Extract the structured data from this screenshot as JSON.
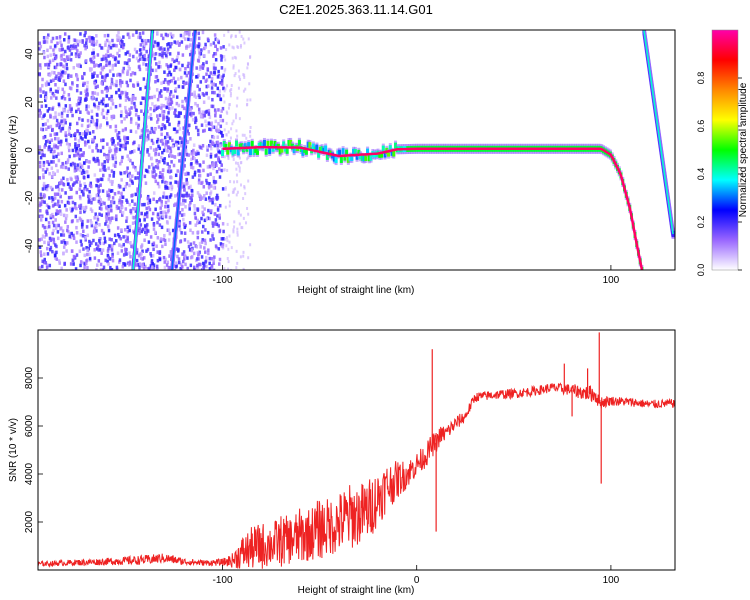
{
  "title": "C2E1.2025.363.11.14.G01",
  "chart_data": [
    {
      "type": "heatmap",
      "name": "spectrogram",
      "xlabel": "Height of straight line (km)",
      "ylabel": "Frequency (Hz)",
      "xlim": [
        -195,
        133
      ],
      "ylim": [
        -50,
        50
      ],
      "xticks": [
        -100,
        100
      ],
      "xtick_labels": [
        "-100",
        "100"
      ],
      "yticks": [
        -40,
        -20,
        0,
        20,
        40
      ],
      "ytick_labels": [
        "-40",
        "-20",
        "0",
        "20",
        "40"
      ],
      "colorbar": {
        "label": "Normalized spectral amplitude",
        "range": [
          0,
          1
        ],
        "ticks": [
          0,
          0.2,
          0.4,
          0.6,
          0.8
        ],
        "tick_labels": [
          "0.0",
          "0.2",
          "0.4",
          "0.6",
          "0.8"
        ],
        "colormap": [
          "#ffffff",
          "#9966ff",
          "#0000ff",
          "#00ffff",
          "#00ff00",
          "#ffff00",
          "#ff8800",
          "#ff0000",
          "#ff00aa"
        ]
      },
      "features": [
        {
          "label": "main tone",
          "x": [
            -100,
            -80,
            -60,
            -40,
            -20,
            -10,
            0,
            20,
            40,
            60,
            80,
            95,
            100,
            105,
            110,
            113,
            116
          ],
          "y": [
            0.5,
            1.2,
            1.0,
            -2.5,
            -1.5,
            0.3,
            0.5,
            0.5,
            0.5,
            0.5,
            0.5,
            0.5,
            -2,
            -10,
            -25,
            -38,
            -50
          ],
          "amplitude": 0.95
        },
        {
          "label": "aliased streak 1",
          "x": [
            -146,
            -136
          ],
          "y": [
            -50,
            50
          ],
          "amplitude": 0.4
        },
        {
          "label": "aliased streak 2",
          "x": [
            -126,
            -114
          ],
          "y": [
            -50,
            50
          ],
          "amplitude": 0.3
        },
        {
          "label": "aliased streak 3",
          "x": [
            117,
            132
          ],
          "y": [
            50,
            -35
          ],
          "amplitude": 0.4
        }
      ]
    },
    {
      "type": "line",
      "name": "snr",
      "xlabel": "Height of straight line (km)",
      "ylabel": "SNR (10 * v/v)",
      "xlim": [
        -195,
        133
      ],
      "ylim": [
        0,
        10000
      ],
      "xticks": [
        -100,
        0,
        100
      ],
      "xtick_labels": [
        "-100",
        "0",
        "100"
      ],
      "yticks": [
        2000,
        4000,
        6000,
        8000
      ],
      "ytick_labels": [
        "2000",
        "4000",
        "6000",
        "8000"
      ],
      "series_color": "#ee2222",
      "series": [
        {
          "name": "SNR",
          "x": [
            -195,
            -180,
            -160,
            -140,
            -130,
            -120,
            -110,
            -100,
            -95,
            -90,
            -85,
            -80,
            -75,
            -70,
            -65,
            -60,
            -55,
            -50,
            -45,
            -40,
            -35,
            -30,
            -25,
            -20,
            -15,
            -10,
            -5,
            0,
            5,
            8,
            10,
            12,
            15,
            20,
            25,
            30,
            35,
            40,
            50,
            60,
            70,
            80,
            85,
            90,
            92,
            94,
            96,
            100,
            110,
            120,
            133
          ],
          "y": [
            250,
            300,
            350,
            420,
            500,
            350,
            300,
            320,
            400,
            700,
            900,
            1000,
            1050,
            1200,
            1250,
            1400,
            1500,
            1700,
            1800,
            1950,
            2200,
            2300,
            2500,
            3000,
            3500,
            3750,
            4000,
            4400,
            4800,
            5200,
            5300,
            5600,
            5700,
            6100,
            6400,
            7200,
            7250,
            7300,
            7350,
            7450,
            7600,
            7500,
            7400,
            7350,
            7300,
            7000,
            7000,
            7050,
            7000,
            6900,
            6950
          ],
          "noise": [
            100,
            120,
            150,
            200,
            200,
            150,
            120,
            150,
            300,
            700,
            900,
            1000,
            900,
            1100,
            1000,
            1200,
            1100,
            1300,
            1200,
            1300,
            1400,
            1300,
            1300,
            1200,
            1000,
            800,
            600,
            500,
            500,
            500,
            450,
            400,
            350,
            300,
            250,
            200,
            200,
            200,
            200,
            200,
            200,
            250,
            300,
            350,
            350,
            300,
            250,
            200,
            180,
            180,
            180
          ]
        }
      ],
      "spikes": [
        {
          "x": 8,
          "y": 9200
        },
        {
          "x": 10,
          "y": 1600
        },
        {
          "x": 76,
          "y": 8600
        },
        {
          "x": 80,
          "y": 6400
        },
        {
          "x": 88,
          "y": 8400
        },
        {
          "x": 94,
          "y": 9900
        },
        {
          "x": 95,
          "y": 3600
        }
      ]
    }
  ]
}
